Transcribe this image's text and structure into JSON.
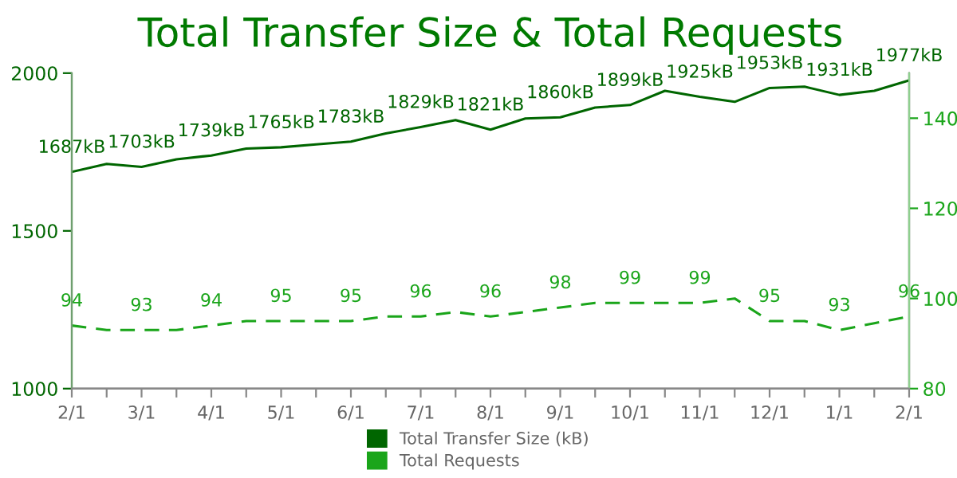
{
  "chart_data": {
    "type": "line",
    "title": "Total Transfer Size & Total Requests",
    "categories": [
      "2/1",
      null,
      "3/1",
      null,
      "4/1",
      null,
      "5/1",
      null,
      "6/1",
      null,
      "7/1",
      null,
      "8/1",
      null,
      "9/1",
      null,
      "10/1",
      null,
      "11/1",
      null,
      "12/1",
      null,
      "1/1",
      null,
      "2/1"
    ],
    "series": [
      {
        "name": "Total Transfer Size (kB)",
        "color": "#006600",
        "line_style": "solid",
        "values": [
          1687,
          1712,
          1703,
          1727,
          1739,
          1761,
          1765,
          1774,
          1783,
          1809,
          1829,
          1851,
          1821,
          1856,
          1860,
          1891,
          1899,
          1944,
          1925,
          1909,
          1953,
          1957,
          1931,
          1944,
          1977
        ],
        "value_labels": [
          "1687kB",
          null,
          "1703kB",
          null,
          "1739kB",
          null,
          "1765kB",
          null,
          "1783kB",
          null,
          "1829kB",
          null,
          "1821kB",
          null,
          "1860kB",
          null,
          "1899kB",
          null,
          "1925kB",
          null,
          "1953kB",
          null,
          "1931kB",
          null,
          "1977kB"
        ]
      },
      {
        "name": "Total Requests",
        "color": "#1aa51a",
        "line_style": "dashed",
        "axis": "y2",
        "values": [
          94,
          93,
          93,
          93,
          94,
          95,
          95,
          95,
          95,
          96,
          96,
          97,
          96,
          97,
          98,
          99,
          99,
          99,
          99,
          100,
          95,
          95,
          93,
          94.5,
          96
        ],
        "value_labels": [
          "94",
          null,
          "93",
          null,
          "94",
          null,
          "95",
          null,
          "95",
          null,
          "96",
          null,
          "96",
          null,
          "98",
          null,
          "99",
          null,
          "99",
          null,
          "95",
          null,
          "93",
          null,
          "96"
        ]
      }
    ],
    "ylim": [
      1000,
      2000
    ],
    "yticks": [
      1000,
      1500,
      2000
    ],
    "y2lim": [
      80,
      150
    ],
    "y2ticks": [
      80,
      100,
      120,
      140
    ],
    "grid": false,
    "legend": "bottom",
    "marker": "none"
  }
}
